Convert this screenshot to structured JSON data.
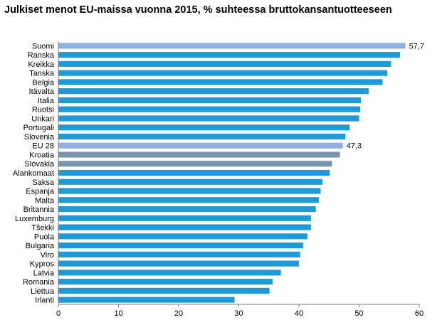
{
  "title": "Julkiset menot EU-maissa vuonna 2015, % suhteessa bruttokansantuotteeseen",
  "colors": {
    "bar": "#1f9ad6",
    "highlight": "#8fb0e0",
    "slate": "#7a95ad",
    "grid": "#bfbfbf",
    "axis": "#7f7f7f"
  },
  "chart_data": {
    "type": "bar",
    "orientation": "horizontal",
    "title": "Julkiset menot EU-maissa vuonna 2015, % suhteessa bruttokansantuotteeseen",
    "xlabel": "",
    "ylabel": "",
    "xlim": [
      0,
      60
    ],
    "xticks": [
      0,
      10,
      20,
      30,
      40,
      50,
      60
    ],
    "grid": false,
    "categories": [
      "Suomi",
      "Ranska",
      "Kreikka",
      "Tanska",
      "Belgia",
      "Itävalta",
      "Italia",
      "Ruotsi",
      "Unkari",
      "Portugali",
      "Slovenia",
      "EU 28",
      "Kroatia",
      "Slovakia",
      "Alankomaat",
      "Saksa",
      "Espanja",
      "Malta",
      "Britannia",
      "Luxemburg",
      "Tšekki",
      "Puola",
      "Bulgaria",
      "Viro",
      "Kypros",
      "Latvia",
      "Romania",
      "Liettua",
      "Irlanti"
    ],
    "values": [
      57.7,
      56.8,
      55.3,
      54.7,
      53.9,
      51.6,
      50.3,
      50.2,
      50.0,
      48.4,
      47.7,
      47.3,
      46.8,
      45.5,
      45.1,
      43.9,
      43.6,
      43.3,
      42.8,
      42.0,
      42.0,
      41.4,
      40.7,
      40.2,
      40.0,
      37.0,
      35.6,
      35.1,
      29.3
    ],
    "bar_colors": [
      "highlight",
      "bar",
      "bar",
      "bar",
      "bar",
      "bar",
      "bar",
      "bar",
      "bar",
      "bar",
      "bar",
      "highlight",
      "slate",
      "slate",
      "bar",
      "bar",
      "bar",
      "bar",
      "bar",
      "bar",
      "bar",
      "bar",
      "bar",
      "bar",
      "bar",
      "bar",
      "bar",
      "bar",
      "bar"
    ],
    "data_labels": [
      {
        "category": "Suomi",
        "text": "57,7"
      },
      {
        "category": "EU 28",
        "text": "47,3"
      }
    ]
  }
}
